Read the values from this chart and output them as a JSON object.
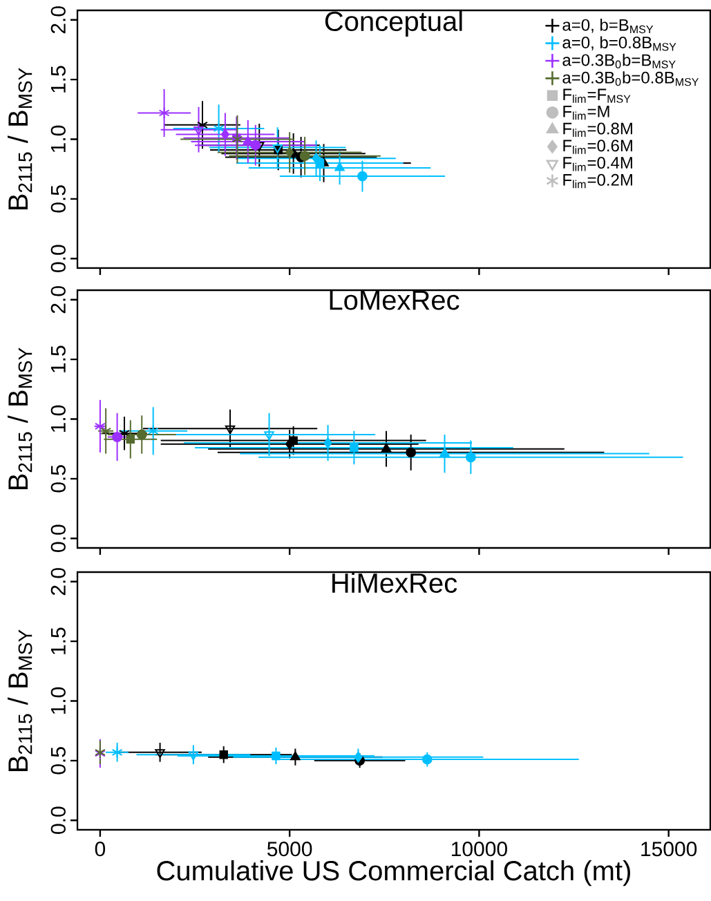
{
  "chart_data": [
    {
      "type": "scatter",
      "title": "Conceptual",
      "ylabel": "B$_{2115}$ / B$_{MSY}$",
      "xlim": [
        -600,
        16100
      ],
      "ylim": [
        -0.08,
        2.08
      ],
      "xticks": [
        0,
        5000,
        10000,
        15000
      ],
      "yticks": [
        {
          "value": 0,
          "label": "0.0"
        },
        {
          "value": 0.5,
          "label": "0.5"
        },
        {
          "value": 1,
          "label": "1.0"
        },
        {
          "value": 1.5,
          "label": "1.5"
        },
        {
          "value": 2,
          "label": "2.0"
        }
      ],
      "tick_labels": "y",
      "legend": "top right",
      "series": [
        {
          "name": "a=0, b=B$_{MSY}$",
          "color": "#000000",
          "marker": [
            "square",
            "circle",
            "triangle",
            "diamond",
            "triangle_down",
            "star"
          ],
          "x": [
            4700,
            5300,
            5900,
            5100,
            4200,
            2700
          ],
          "values": [
            0.91,
            0.85,
            0.8,
            0.88,
            0.95,
            1.12
          ],
          "xerrors": [
            1800,
            2000,
            2300,
            1900,
            1600,
            1000
          ],
          "errors": [
            0.17,
            0.17,
            0.16,
            0.17,
            0.18,
            0.2
          ]
        },
        {
          "name": "a=0, b=0.8B$_{MSY}$",
          "color": "#00bfff",
          "marker": [
            "square",
            "circle",
            "triangle",
            "diamond",
            "triangle_down",
            "star"
          ],
          "x": [
            5800,
            6920,
            6320,
            5700,
            4680,
            3130
          ],
          "values": [
            0.8,
            0.69,
            0.76,
            0.84,
            0.93,
            1.09
          ],
          "xerrors": [
            2200,
            2180,
            2400,
            2100,
            1800,
            1200
          ],
          "errors": [
            0.15,
            0.13,
            0.14,
            0.15,
            0.17,
            0.2
          ]
        },
        {
          "name": "a=0.3B$_{0}$b=B$_{MSY}$",
          "color": "#9b30ff",
          "marker": [
            "square",
            "circle",
            "triangle",
            "diamond",
            "triangle_down",
            "star"
          ],
          "x": [
            3600,
            4100,
            3900,
            3300,
            2600,
            1690
          ],
          "values": [
            1.01,
            0.95,
            0.98,
            1.04,
            1.08,
            1.22
          ],
          "xerrors": [
            1400,
            1600,
            1500,
            1300,
            1000,
            700
          ],
          "errors": [
            0.18,
            0.17,
            0.18,
            0.18,
            0.19,
            0.2
          ]
        },
        {
          "name": "a=0.3B$_{0}$b=0.8B$_{MSY}$",
          "color": "#556b2f",
          "marker": [
            "square",
            "circle",
            "triangle",
            "diamond",
            "triangle_down",
            "star"
          ],
          "x": [
            null,
            5400,
            null,
            5000,
            null,
            3620
          ],
          "values": [
            null,
            0.86,
            null,
            0.89,
            null,
            1.0
          ],
          "xerrors": [
            null,
            2000,
            null,
            1900,
            null,
            1500
          ],
          "errors": [
            null,
            0.16,
            null,
            0.17,
            null,
            0.2
          ]
        },
        {
          "name": "F$_{lim}$=F$_{MSY}$",
          "color": "#bebebe",
          "marker": "square"
        },
        {
          "name": "F$_{lim}$=M",
          "color": "#bebebe",
          "marker": "circle"
        },
        {
          "name": "F$_{lim}$=0.8M",
          "color": "#bebebe",
          "marker": "triangle"
        },
        {
          "name": "F$_{lim}$=0.6M",
          "color": "#bebebe",
          "marker": "diamond"
        },
        {
          "name": "F$_{lim}$=0.4M",
          "color": "#bebebe",
          "marker": "triangle_down"
        },
        {
          "name": "F$_{lim}$=0.2M",
          "color": "#bebebe",
          "marker": "star"
        }
      ]
    },
    {
      "type": "scatter",
      "title": "LoMexRec",
      "ylabel": "B$_{2115}$ / B$_{MSY}$",
      "xlim": [
        -600,
        16100
      ],
      "ylim": [
        -0.08,
        2.08
      ],
      "xticks": [
        0,
        5000,
        10000,
        15000
      ],
      "yticks": [
        {
          "value": 0,
          "label": "0.0"
        },
        {
          "value": 0.5,
          "label": "0.5"
        },
        {
          "value": 1,
          "label": "1.0"
        },
        {
          "value": 1.5,
          "label": "1.5"
        },
        {
          "value": 2,
          "label": "2.0"
        }
      ],
      "tick_labels": "y",
      "series": [
        {
          "color": "#000000",
          "marker": [
            "square",
            "circle",
            "triangle",
            "diamond",
            "triangle_down",
            "star"
          ],
          "x": [
            5100,
            8200,
            7550,
            5000,
            3430,
            640
          ],
          "values": [
            0.82,
            0.72,
            0.75,
            0.79,
            0.92,
            0.88
          ],
          "xerrors": [
            3500,
            5100,
            4700,
            3400,
            2300,
            600
          ],
          "errors": [
            0.12,
            0.15,
            0.15,
            0.12,
            0.16,
            0.14
          ]
        },
        {
          "color": "#00bfff",
          "marker": [
            "square",
            "circle",
            "triangle",
            "diamond",
            "triangle_down",
            "star"
          ],
          "x": [
            6700,
            9780,
            9090,
            6010,
            4460,
            1400
          ],
          "values": [
            0.76,
            0.68,
            0.71,
            0.8,
            0.87,
            0.9
          ],
          "xerrors": [
            4200,
            5600,
            5400,
            3800,
            2800,
            900
          ],
          "errors": [
            0.14,
            0.14,
            0.16,
            0.15,
            0.18,
            0.2
          ]
        },
        {
          "color": "#9b30ff",
          "marker": [
            "square",
            "circle",
            "triangle",
            "diamond",
            "triangle_down",
            "star"
          ],
          "x": [
            null,
            450,
            null,
            null,
            null,
            0
          ],
          "values": [
            null,
            0.85,
            null,
            null,
            null,
            0.94
          ],
          "xerrors": [
            null,
            250,
            null,
            null,
            null,
            150
          ],
          "errors": [
            null,
            0.2,
            null,
            null,
            null,
            0.22
          ]
        },
        {
          "color": "#556b2f",
          "marker": [
            "square",
            "circle",
            "triangle",
            "diamond",
            "triangle_down",
            "star"
          ],
          "x": [
            800,
            1100,
            null,
            null,
            null,
            150
          ],
          "values": [
            0.83,
            0.87,
            null,
            null,
            null,
            0.9
          ],
          "xerrors": [
            700,
            900,
            null,
            null,
            null,
            200
          ],
          "errors": [
            0.16,
            0.16,
            null,
            null,
            null,
            0.19
          ]
        }
      ]
    },
    {
      "type": "scatter",
      "title": "HiMexRec",
      "xlabel": "Cumulative US Commercial Catch (mt)",
      "ylabel": "B$_{2115}$ / B$_{MSY}$",
      "xlim": [
        -600,
        16100
      ],
      "ylim": [
        -0.08,
        2.08
      ],
      "xticks": [
        0,
        5000,
        10000,
        15000
      ],
      "yticks": [
        {
          "value": 0,
          "label": "0.0"
        },
        {
          "value": 0.5,
          "label": "0.5"
        },
        {
          "value": 1,
          "label": "1.0"
        },
        {
          "value": 1.5,
          "label": "1.5"
        },
        {
          "value": 2,
          "label": "2.0"
        }
      ],
      "series": [
        {
          "color": "#000000",
          "marker": [
            "square",
            "circle",
            "triangle",
            "diamond",
            "triangle_down",
            "star"
          ],
          "x": [
            3260,
            6850,
            5150,
            null,
            1580,
            null
          ],
          "values": [
            0.55,
            0.5,
            0.53,
            null,
            0.57,
            null
          ],
          "xerrors": [
            1800,
            1200,
            2300,
            null,
            1100,
            null
          ],
          "errors": [
            0.07,
            0.06,
            0.07,
            null,
            0.08,
            null
          ]
        },
        {
          "color": "#00bfff",
          "marker": [
            "square",
            "circle",
            "triangle",
            "diamond",
            "triangle_down",
            "star"
          ],
          "x": [
            4640,
            8630,
            null,
            6810,
            2460,
            450
          ],
          "values": [
            0.54,
            0.51,
            null,
            0.53,
            0.55,
            0.57
          ],
          "xerrors": [
            2600,
            4000,
            null,
            3300,
            1500,
            300
          ],
          "errors": [
            0.07,
            0.06,
            null,
            0.07,
            0.08,
            0.08
          ]
        },
        {
          "color": "#9b30ff",
          "marker": [
            "square",
            "circle",
            "triangle",
            "diamond",
            "triangle_down",
            "star"
          ],
          "x": [
            null,
            null,
            null,
            null,
            null,
            0
          ],
          "values": [
            null,
            null,
            null,
            null,
            null,
            0.56
          ],
          "xerrors": [
            null,
            null,
            null,
            null,
            null,
            50
          ],
          "errors": [
            null,
            null,
            null,
            null,
            null,
            0.12
          ]
        },
        {
          "color": "#556b2f",
          "marker": [
            "square",
            "circle",
            "triangle",
            "diamond",
            "triangle_down",
            "star"
          ],
          "x": [
            null,
            null,
            null,
            null,
            null,
            0
          ],
          "values": [
            null,
            null,
            null,
            null,
            null,
            0.57
          ],
          "xerrors": [
            null,
            null,
            null,
            null,
            null,
            20
          ],
          "errors": [
            null,
            null,
            null,
            null,
            null,
            0.1
          ]
        }
      ]
    }
  ]
}
